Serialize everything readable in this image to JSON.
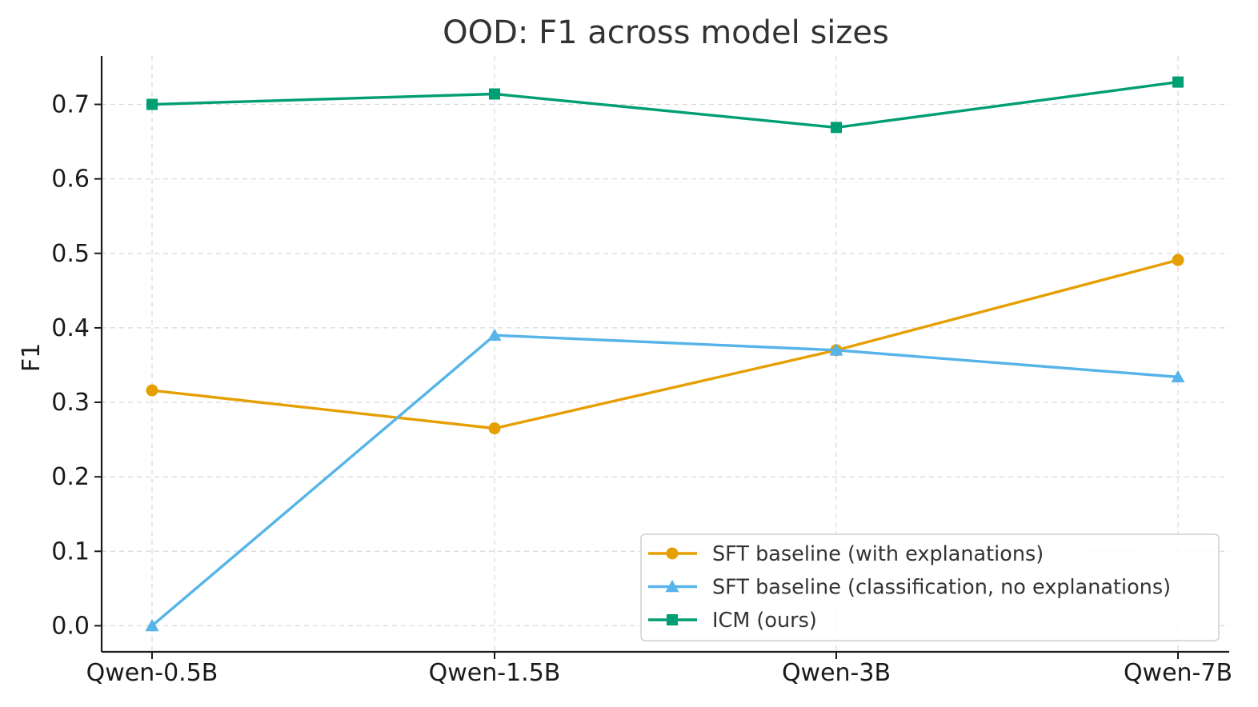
{
  "chart_data": {
    "type": "line",
    "title": "OOD: F1 across model sizes",
    "xlabel": "",
    "ylabel": "F1",
    "categories": [
      "Qwen-0.5B",
      "Qwen-1.5B",
      "Qwen-3B",
      "Qwen-7B"
    ],
    "ylim": [
      -0.035,
      0.765
    ],
    "yticks": [
      0.0,
      0.1,
      0.2,
      0.3,
      0.4,
      0.5,
      0.6,
      0.7
    ],
    "ytick_labels": [
      "0.0",
      "0.1",
      "0.2",
      "0.3",
      "0.4",
      "0.5",
      "0.6",
      "0.7"
    ],
    "grid": true,
    "legend_position": "bottom-right",
    "series": [
      {
        "name": "SFT baseline (with explanations)",
        "color": "#E69F00",
        "marker": "circle",
        "values": [
          0.316,
          0.265,
          0.37,
          0.491
        ]
      },
      {
        "name": "SFT baseline (classification, no explanations)",
        "color": "#56B4E9",
        "marker": "triangle",
        "values": [
          0.0,
          0.39,
          0.37,
          0.334
        ]
      },
      {
        "name": "ICM (ours)",
        "color": "#009E73",
        "marker": "square",
        "values": [
          0.7,
          0.714,
          0.669,
          0.73
        ]
      }
    ]
  }
}
